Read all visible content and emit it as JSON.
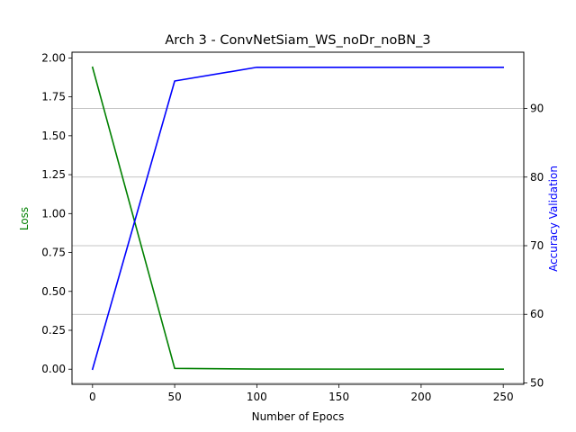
{
  "chart_data": {
    "type": "line",
    "title": "Arch 3 - ConvNetSiam_WS_noDr_noBN_3",
    "xlabel": "Number of Epocs",
    "ylabel_left": "Loss",
    "ylabel_right": "Accuracy Validation",
    "x": [
      0,
      50,
      100,
      250
    ],
    "xlim": [
      -12.5,
      262.5
    ],
    "xticks": [
      0,
      50,
      100,
      150,
      200,
      250
    ],
    "ylim_left": [
      -0.097,
      2.037
    ],
    "yticks_left": [
      "0.00",
      "0.25",
      "0.50",
      "0.75",
      "1.00",
      "1.25",
      "1.50",
      "1.75",
      "2.00"
    ],
    "ylim_right": [
      49.8,
      98.2
    ],
    "yticks_right": [
      50,
      60,
      70,
      80,
      90
    ],
    "grid": "right-axis horizontal lines",
    "series": [
      {
        "axis": "left",
        "color": "#008000",
        "values": [
          1.94,
          0.005,
          0.001,
          0.0
        ]
      },
      {
        "axis": "right",
        "color": "#0000ff",
        "values": [
          52.0,
          94.0,
          96.0,
          96.0
        ]
      }
    ]
  }
}
